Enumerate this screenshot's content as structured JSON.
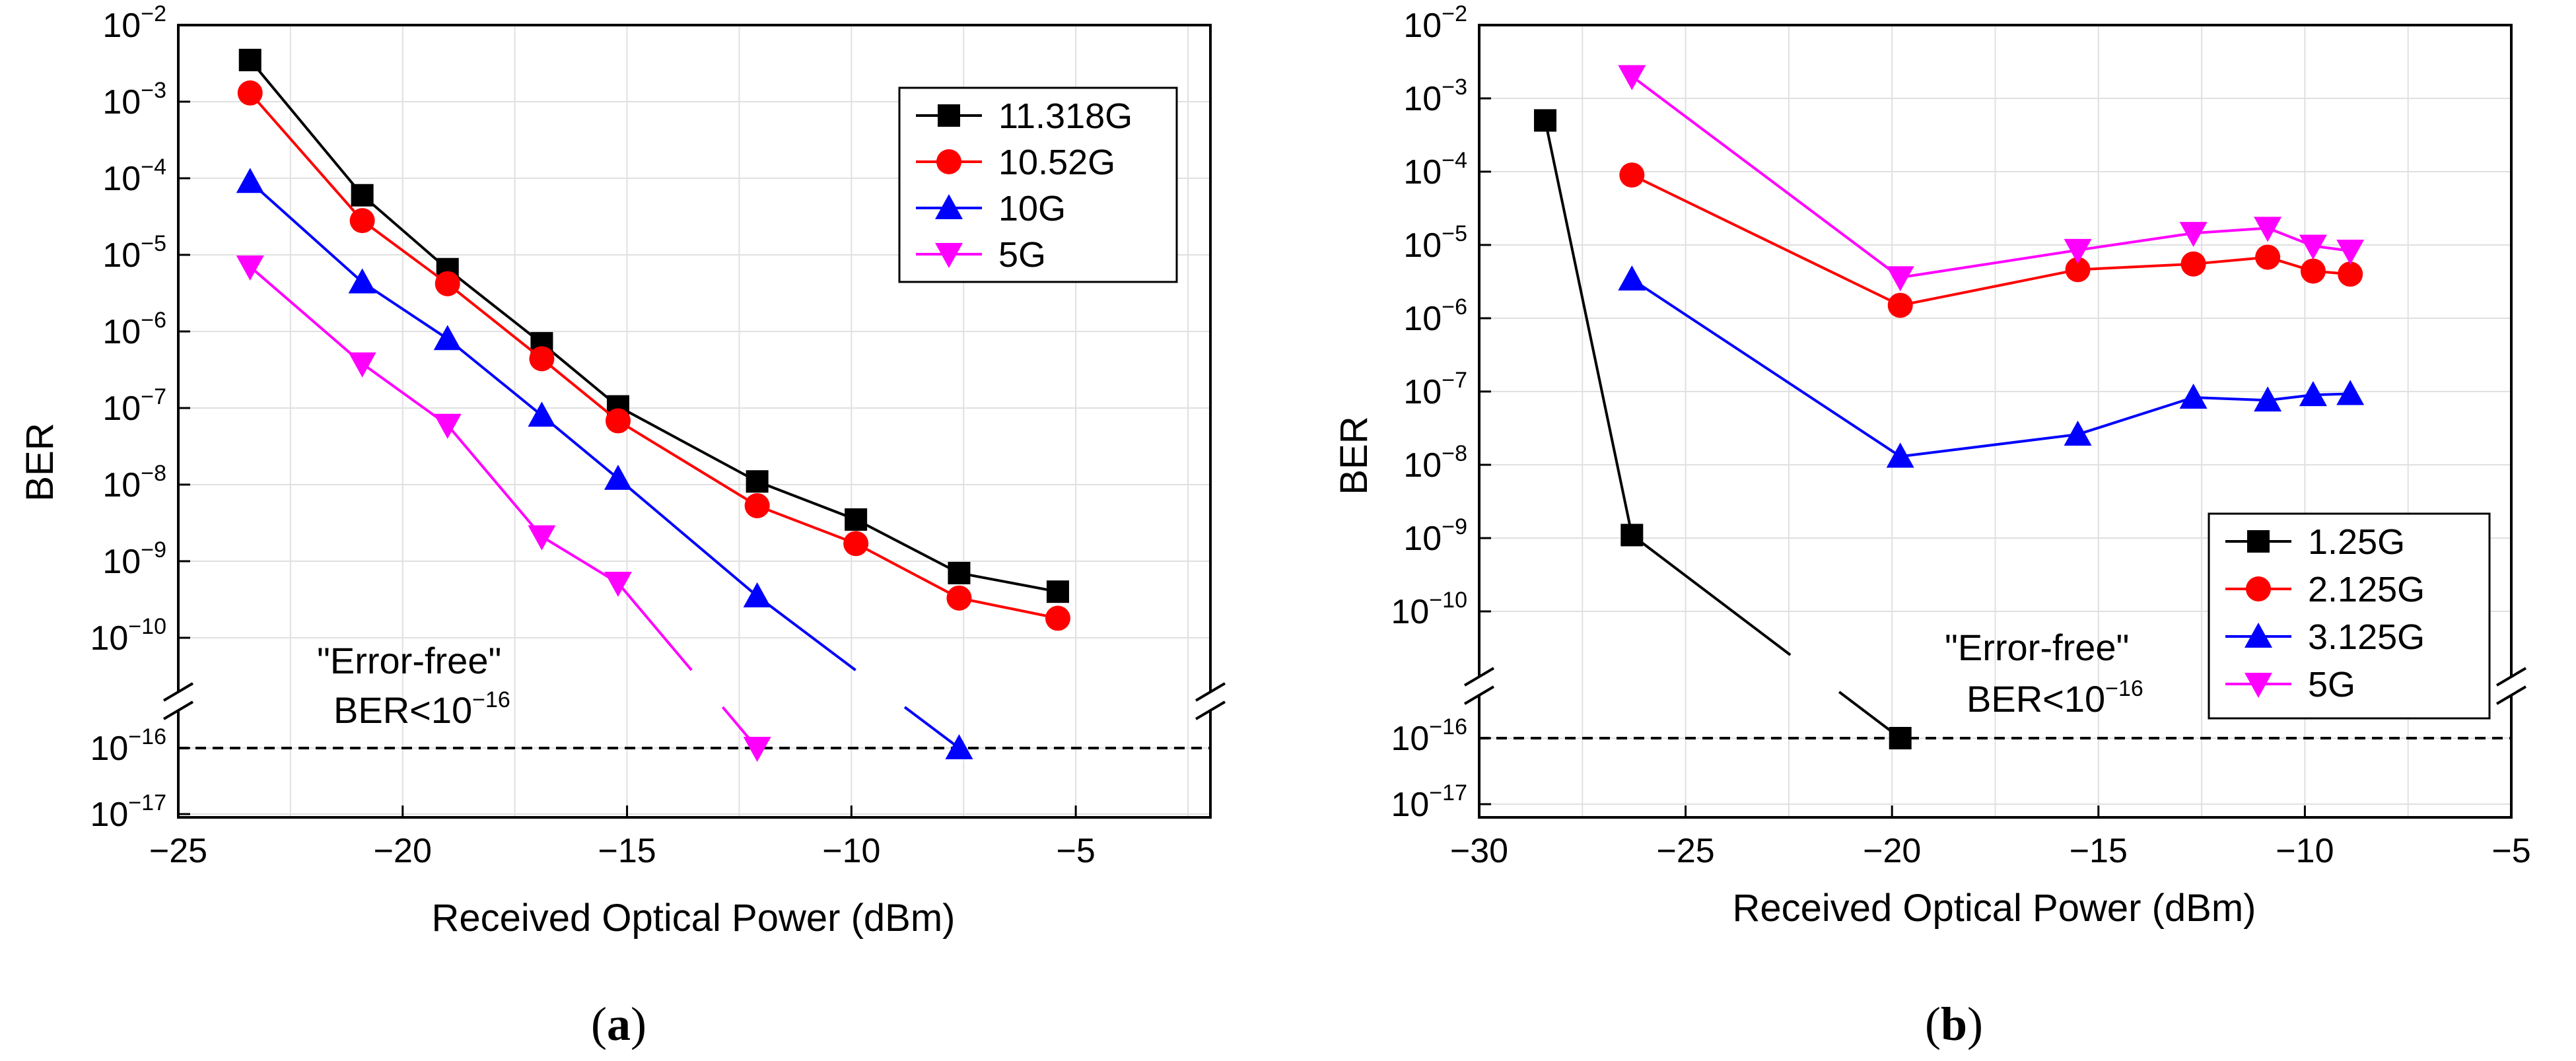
{
  "chart_data": [
    {
      "type": "line",
      "panel_label": "a",
      "xlabel": "Received Optical Power (dBm)",
      "ylabel": "BER",
      "xlim": [
        -25,
        -2
      ],
      "xticks": [
        -25,
        -20,
        -15,
        -10,
        -5
      ],
      "yscale": "log-broken",
      "yticks_exp": [
        -2,
        -3,
        -4,
        -5,
        -6,
        -7,
        -8,
        -9,
        -10,
        -16,
        -17
      ],
      "grid": true,
      "legend_position": "top-right",
      "annotation": {
        "line1": "\"Error-free\"",
        "line2_base": "BER<10",
        "line2_exp": "−16"
      },
      "threshold_exp": -16,
      "series": [
        {
          "name": "11.318G",
          "color": "#000000",
          "marker": "square",
          "x": [
            -23.4,
            -20.9,
            -19.0,
            -16.9,
            -15.2,
            -12.1,
            -9.9,
            -7.6,
            -5.4
          ],
          "y": [
            0.0035,
            6e-05,
            6.5e-06,
            7e-07,
            1.05e-07,
            1.1e-08,
            3.5e-09,
            7e-10,
            4e-10
          ]
        },
        {
          "name": "10.52G",
          "color": "#ff0000",
          "marker": "circle",
          "x": [
            -23.4,
            -20.9,
            -19.0,
            -16.9,
            -15.2,
            -12.1,
            -9.9,
            -7.6,
            -5.4
          ],
          "y": [
            0.0013,
            2.8e-05,
            4.2e-06,
            4.4e-07,
            6.8e-08,
            5.3e-09,
            1.7e-09,
            3.3e-10,
            1.8e-10
          ]
        },
        {
          "name": "10G",
          "color": "#0000ff",
          "marker": "triangle-up",
          "x": [
            -23.4,
            -20.9,
            -19.0,
            -16.9,
            -15.2,
            -12.1,
            -7.6
          ],
          "y": [
            9e-05,
            4.4e-06,
            8e-07,
            8e-08,
            1.2e-08,
            3.5e-10,
            1e-16
          ]
        },
        {
          "name": "5G",
          "color": "#ff00ff",
          "marker": "triangle-down",
          "x": [
            -23.4,
            -20.9,
            -19.0,
            -16.9,
            -15.2,
            -12.1
          ],
          "y": [
            7e-06,
            3.8e-07,
            6e-08,
            2.1e-09,
            5.2e-10,
            1e-16
          ]
        }
      ]
    },
    {
      "type": "line",
      "panel_label": "b",
      "xlabel": "Received Optical Power (dBm)",
      "ylabel": "BER",
      "xlim": [
        -30,
        -5
      ],
      "xticks": [
        -30,
        -25,
        -20,
        -15,
        -10,
        -5
      ],
      "yscale": "log-broken",
      "yticks_exp": [
        -2,
        -3,
        -4,
        -5,
        -6,
        -7,
        -8,
        -9,
        -10,
        -16,
        -17
      ],
      "grid": true,
      "legend_position": "bottom-right",
      "annotation": {
        "line1": "\"Error-free\"",
        "line2_base": "BER<10",
        "line2_exp": "−16"
      },
      "threshold_exp": -16,
      "series": [
        {
          "name": "1.25G",
          "color": "#000000",
          "marker": "square",
          "x": [
            -28.4,
            -26.3,
            -19.8
          ],
          "y": [
            0.0005,
            1.1e-09,
            1e-16
          ]
        },
        {
          "name": "2.125G",
          "color": "#ff0000",
          "marker": "circle",
          "x": [
            -26.3,
            -19.8,
            -15.5,
            -12.7,
            -10.9,
            -9.8,
            -8.9
          ],
          "y": [
            9e-05,
            1.5e-06,
            4.6e-06,
            5.5e-06,
            6.8e-06,
            4.4e-06,
            4e-06
          ]
        },
        {
          "name": "3.125G",
          "color": "#0000ff",
          "marker": "triangle-up",
          "x": [
            -26.3,
            -19.8,
            -15.5,
            -12.7,
            -10.9,
            -9.8,
            -8.9
          ],
          "y": [
            3.4e-06,
            1.3e-08,
            2.6e-08,
            8.3e-08,
            7.6e-08,
            9e-08,
            9.3e-08
          ]
        },
        {
          "name": "5G",
          "color": "#ff00ff",
          "marker": "triangle-down",
          "x": [
            -26.3,
            -19.8,
            -15.5,
            -12.7,
            -10.9,
            -9.8,
            -8.9
          ],
          "y": [
            0.002,
            3.6e-06,
            8.5e-06,
            1.45e-05,
            1.7e-05,
            9.7e-06,
            8.3e-06
          ]
        }
      ]
    }
  ]
}
